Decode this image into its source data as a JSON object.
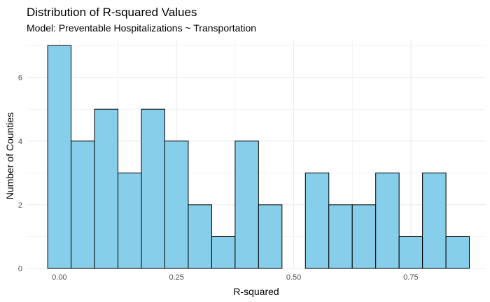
{
  "chart_data": {
    "type": "bar",
    "title": "Distribution of R-squared Values",
    "subtitle": "Model: Preventable Hospitalizations ~ Transportation",
    "xlabel": "R-squared",
    "ylabel": "Number of Counties",
    "bin_width": 0.05,
    "bin_centers": [
      0.0,
      0.05,
      0.1,
      0.15,
      0.2,
      0.25,
      0.3,
      0.35,
      0.4,
      0.45,
      0.5,
      0.55,
      0.6,
      0.65,
      0.7,
      0.75,
      0.8,
      0.85
    ],
    "values": [
      7,
      4,
      5,
      3,
      5,
      4,
      2,
      1,
      4,
      2,
      0,
      3,
      2,
      2,
      3,
      1,
      3,
      1
    ],
    "xlim": [
      -0.07,
      0.91
    ],
    "ylim": [
      0,
      7.2
    ],
    "x_ticks": [
      0.0,
      0.25,
      0.5,
      0.75
    ],
    "x_tick_labels": [
      "0.00",
      "0.25",
      "0.50",
      "0.75"
    ],
    "y_ticks": [
      0,
      2,
      4,
      6
    ],
    "y_tick_labels": [
      "0",
      "2",
      "4",
      "6"
    ],
    "grid": true,
    "colors": {
      "fill": "#87CEEB",
      "stroke": "#000000",
      "grid": "#ebebeb"
    }
  }
}
